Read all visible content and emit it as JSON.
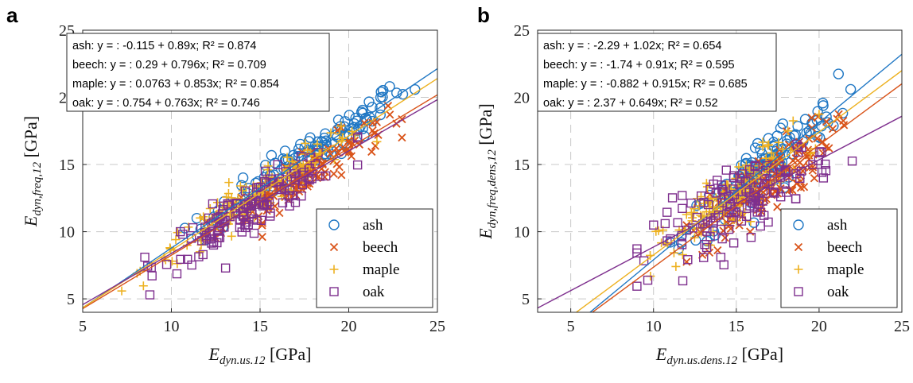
{
  "chart_data": [
    {
      "type": "scatter",
      "panel_label": "a",
      "xlim": [
        5,
        25
      ],
      "ylim": [
        4,
        25
      ],
      "xticks": [
        5,
        10,
        15,
        20,
        25
      ],
      "yticks": [
        5,
        10,
        15,
        20,
        25
      ],
      "grid": true,
      "xlabel": {
        "main": "E",
        "sub": "dyn.us.12",
        "unit": " [GPa]"
      },
      "ylabel": {
        "main": "E",
        "sub": "dyn,freq,12",
        "unit": " [GPa]"
      },
      "equations": [
        "ash: y = : -0.115 + 0.89x; R² = 0.874",
        "beech: y = : 0.29 + 0.796x; R² = 0.709",
        "maple: y = : 0.0763 + 0.853x; R² = 0.854",
        "oak: y = : 0.754 + 0.763x; R² = 0.746"
      ],
      "legend_position": "bottom-right",
      "series": [
        {
          "name": "ash",
          "marker": "circle",
          "color": "#1f77c4",
          "intercept": -0.115,
          "slope": 0.89,
          "xrange": [
            10.5,
            24.5
          ],
          "sd": 0.75
        },
        {
          "name": "beech",
          "marker": "x",
          "color": "#d95319",
          "intercept": 0.29,
          "slope": 0.796,
          "xrange": [
            12,
            23
          ],
          "sd": 0.8
        },
        {
          "name": "maple",
          "marker": "plus",
          "color": "#edb120",
          "intercept": 0.0763,
          "slope": 0.853,
          "xrange": [
            7.2,
            22
          ],
          "sd": 0.7
        },
        {
          "name": "oak",
          "marker": "square",
          "color": "#7e2f8e",
          "intercept": 0.754,
          "slope": 0.763,
          "xrange": [
            8.5,
            20.5
          ],
          "sd": 0.85
        }
      ]
    },
    {
      "type": "scatter",
      "panel_label": "b",
      "xlim": [
        3,
        25
      ],
      "ylim": [
        4,
        25
      ],
      "xticks": [
        5,
        10,
        15,
        20,
        25
      ],
      "yticks": [
        5,
        10,
        15,
        20,
        25
      ],
      "grid": true,
      "xlabel": {
        "main": "E",
        "sub": "dyn.us.dens.12",
        "unit": " [GPa]"
      },
      "ylabel": {
        "main": "E",
        "sub": "dyn,freq,dens,12",
        "unit": " [GPa]"
      },
      "equations": [
        "ash: y = : -2.29 + 1.02x; R² = 0.654",
        "beech: y = : -1.74 + 0.91x; R² = 0.595",
        "maple: y = : -0.882 + 0.915x; R² = 0.685",
        "oak: y = : 2.37 + 0.649x; R² = 0.52"
      ],
      "legend_position": "bottom-right",
      "series": [
        {
          "name": "ash",
          "marker": "circle",
          "color": "#1f77c4",
          "intercept": -2.29,
          "slope": 1.02,
          "xrange": [
            11,
            22
          ],
          "sd": 1.2
        },
        {
          "name": "beech",
          "marker": "x",
          "color": "#d95319",
          "intercept": -1.74,
          "slope": 0.91,
          "xrange": [
            12,
            21.5
          ],
          "sd": 1.2
        },
        {
          "name": "maple",
          "marker": "plus",
          "color": "#edb120",
          "intercept": -0.882,
          "slope": 0.915,
          "xrange": [
            9.5,
            20
          ],
          "sd": 1.1
        },
        {
          "name": "oak",
          "marker": "square",
          "color": "#7e2f8e",
          "intercept": 2.37,
          "slope": 0.649,
          "xrange": [
            9,
            22
          ],
          "sd": 1.3
        }
      ]
    }
  ]
}
